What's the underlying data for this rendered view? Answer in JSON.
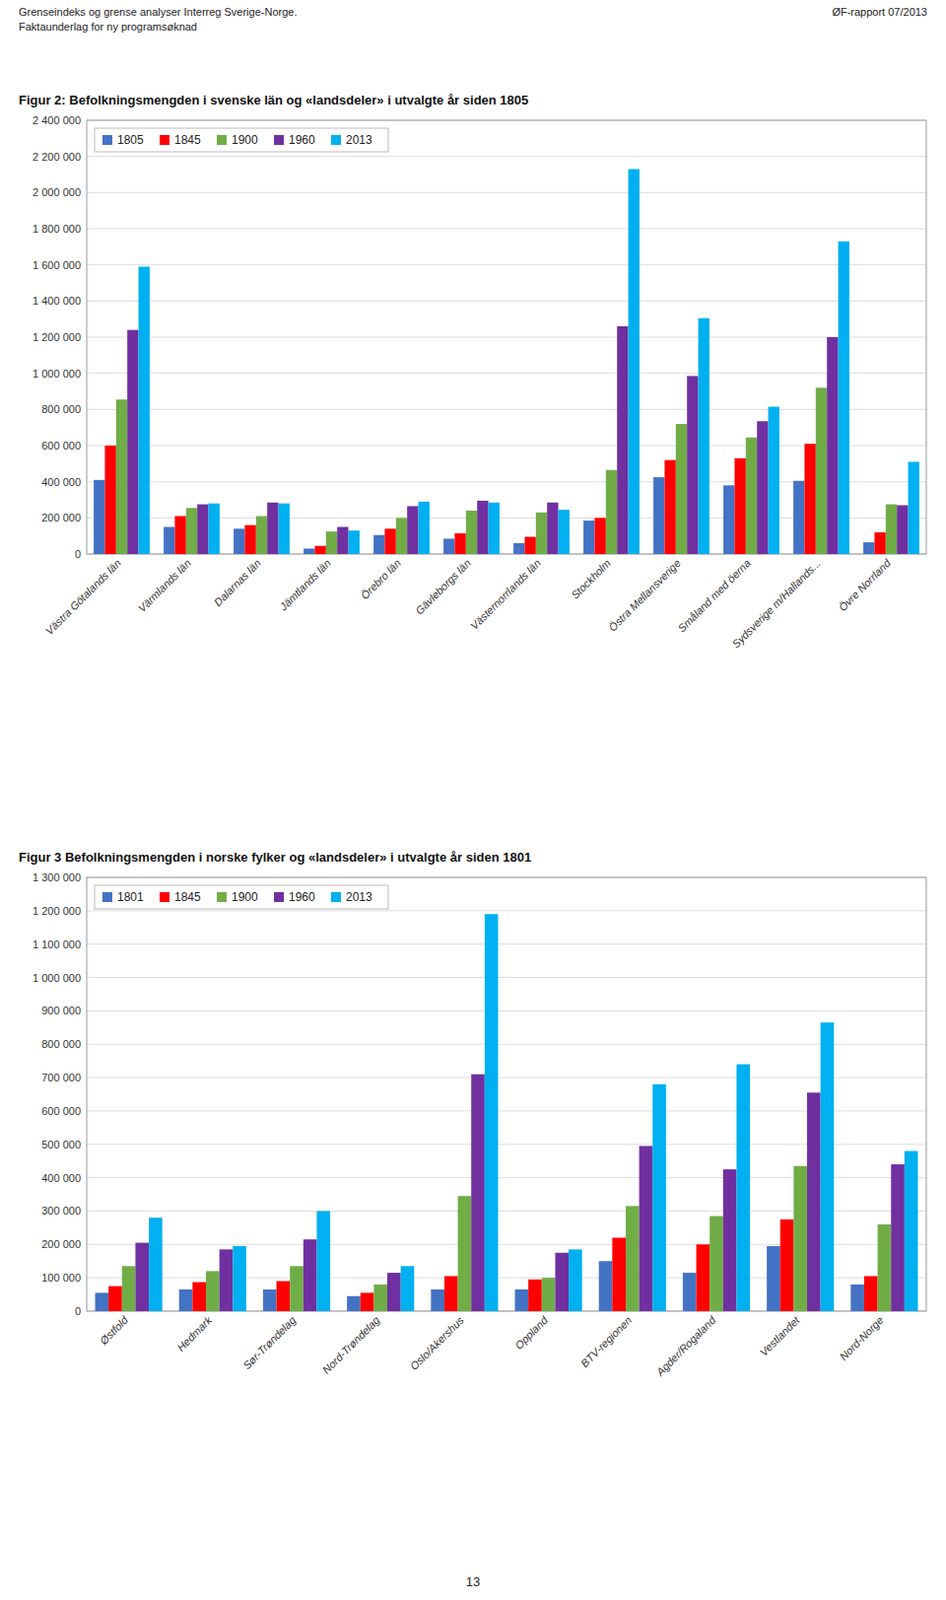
{
  "header_left": "Grenseindeks og grense analyser Interreg Sverige-Norge.\nFaktaunderlag for ny programsøknad",
  "header_right": "ØF-rapport 07/2013",
  "page_number": "13",
  "chart_data": [
    {
      "type": "bar",
      "title": "Figur 2: Befolkningsmengden i svenske län og «landsdeler» i utvalgte år siden 1805",
      "categories": [
        "Västra Götalands län",
        "Värmlands län",
        "Dalarnas län",
        "Jämtlands län",
        "Örebro län",
        "Gävleborgs län",
        "Västernorrlands län",
        "Stockholm",
        "Östra Mellansverige",
        "Småland med öerna",
        "Sydsverige m/Hallands...",
        "Övre Norrland"
      ],
      "series": [
        {
          "name": "1805",
          "color": "#4472C4",
          "values": [
            410000,
            150000,
            140000,
            30000,
            105000,
            85000,
            60000,
            185000,
            425000,
            380000,
            405000,
            65000
          ]
        },
        {
          "name": "1845",
          "color": "#FF0000",
          "values": [
            600000,
            210000,
            160000,
            45000,
            140000,
            115000,
            95000,
            200000,
            520000,
            530000,
            610000,
            120000
          ]
        },
        {
          "name": "1900",
          "color": "#70AD47",
          "values": [
            855000,
            255000,
            210000,
            125000,
            200000,
            240000,
            230000,
            465000,
            720000,
            645000,
            920000,
            275000
          ]
        },
        {
          "name": "1960",
          "color": "#7030A0",
          "values": [
            1240000,
            275000,
            285000,
            150000,
            265000,
            295000,
            285000,
            1260000,
            985000,
            735000,
            1200000,
            270000
          ]
        },
        {
          "name": "2013",
          "color": "#00B0F0",
          "values": [
            1590000,
            280000,
            280000,
            130000,
            290000,
            285000,
            245000,
            2130000,
            1305000,
            815000,
            1730000,
            510000
          ]
        }
      ],
      "ylim": [
        0,
        2400000
      ],
      "yticks": [
        0,
        {
          "value": 200000,
          "label": "200 000"
        },
        {
          "value": 400000,
          "label": "400 000"
        },
        {
          "value": 600000,
          "label": "600 000"
        },
        {
          "value": 800000,
          "label": "800 000"
        },
        {
          "value": 1000000,
          "label": "1 000 000"
        },
        {
          "value": 1200000,
          "label": "1 200 000"
        },
        {
          "value": 1400000,
          "label": "1 400 000"
        },
        {
          "value": 1600000,
          "label": "1 600 000"
        },
        {
          "value": 1800000,
          "label": "1 800 000"
        },
        {
          "value": 2000000,
          "label": "2 000 000"
        },
        {
          "value": 2200000,
          "label": "2 200 000"
        },
        {
          "value": 2400000,
          "label": "2 400 000"
        }
      ],
      "grid": true,
      "legend": "upper left"
    },
    {
      "type": "bar",
      "title": "Figur 3 Befolkningsmengden i norske fylker og «landsdeler» i utvalgte år siden 1801",
      "categories": [
        "Østfold",
        "Hedmark",
        "Sør-Trøndelag",
        "Nord-Trøndelag",
        "Oslo/Akershus",
        "Oppland",
        "BTV-regionen",
        "Agder/Rogaland",
        "Vestlandet",
        "Nord-Norge"
      ],
      "series": [
        {
          "name": "1801",
          "color": "#4472C4",
          "values": [
            55000,
            65000,
            65000,
            45000,
            65000,
            65000,
            150000,
            115000,
            195000,
            80000
          ]
        },
        {
          "name": "1845",
          "color": "#FF0000",
          "values": [
            75000,
            87000,
            90000,
            55000,
            105000,
            95000,
            220000,
            200000,
            275000,
            105000
          ]
        },
        {
          "name": "1900",
          "color": "#70AD47",
          "values": [
            135000,
            120000,
            135000,
            80000,
            345000,
            100000,
            315000,
            285000,
            435000,
            260000
          ]
        },
        {
          "name": "1960",
          "color": "#7030A0",
          "values": [
            205000,
            185000,
            215000,
            115000,
            710000,
            175000,
            495000,
            425000,
            655000,
            440000
          ]
        },
        {
          "name": "2013",
          "color": "#00B0F0",
          "values": [
            280000,
            195000,
            300000,
            135000,
            1190000,
            185000,
            680000,
            740000,
            865000,
            480000
          ]
        }
      ],
      "ylim": [
        0,
        1300000
      ],
      "yticks": [
        0,
        {
          "value": 100000,
          "label": "100 000"
        },
        {
          "value": 200000,
          "label": "200 000"
        },
        {
          "value": 300000,
          "label": "300 000"
        },
        {
          "value": 400000,
          "label": "400 000"
        },
        {
          "value": 500000,
          "label": "500 000"
        },
        {
          "value": 600000,
          "label": "600 000"
        },
        {
          "value": 700000,
          "label": "700 000"
        },
        {
          "value": 800000,
          "label": "800 000"
        },
        {
          "value": 900000,
          "label": "900 000"
        },
        {
          "value": 1000000,
          "label": "1 000 000"
        },
        {
          "value": 1100000,
          "label": "1 100 000"
        },
        {
          "value": 1200000,
          "label": "1 200 000"
        },
        {
          "value": 1300000,
          "label": "1 300 000"
        }
      ],
      "grid": true,
      "legend": "upper left"
    }
  ]
}
